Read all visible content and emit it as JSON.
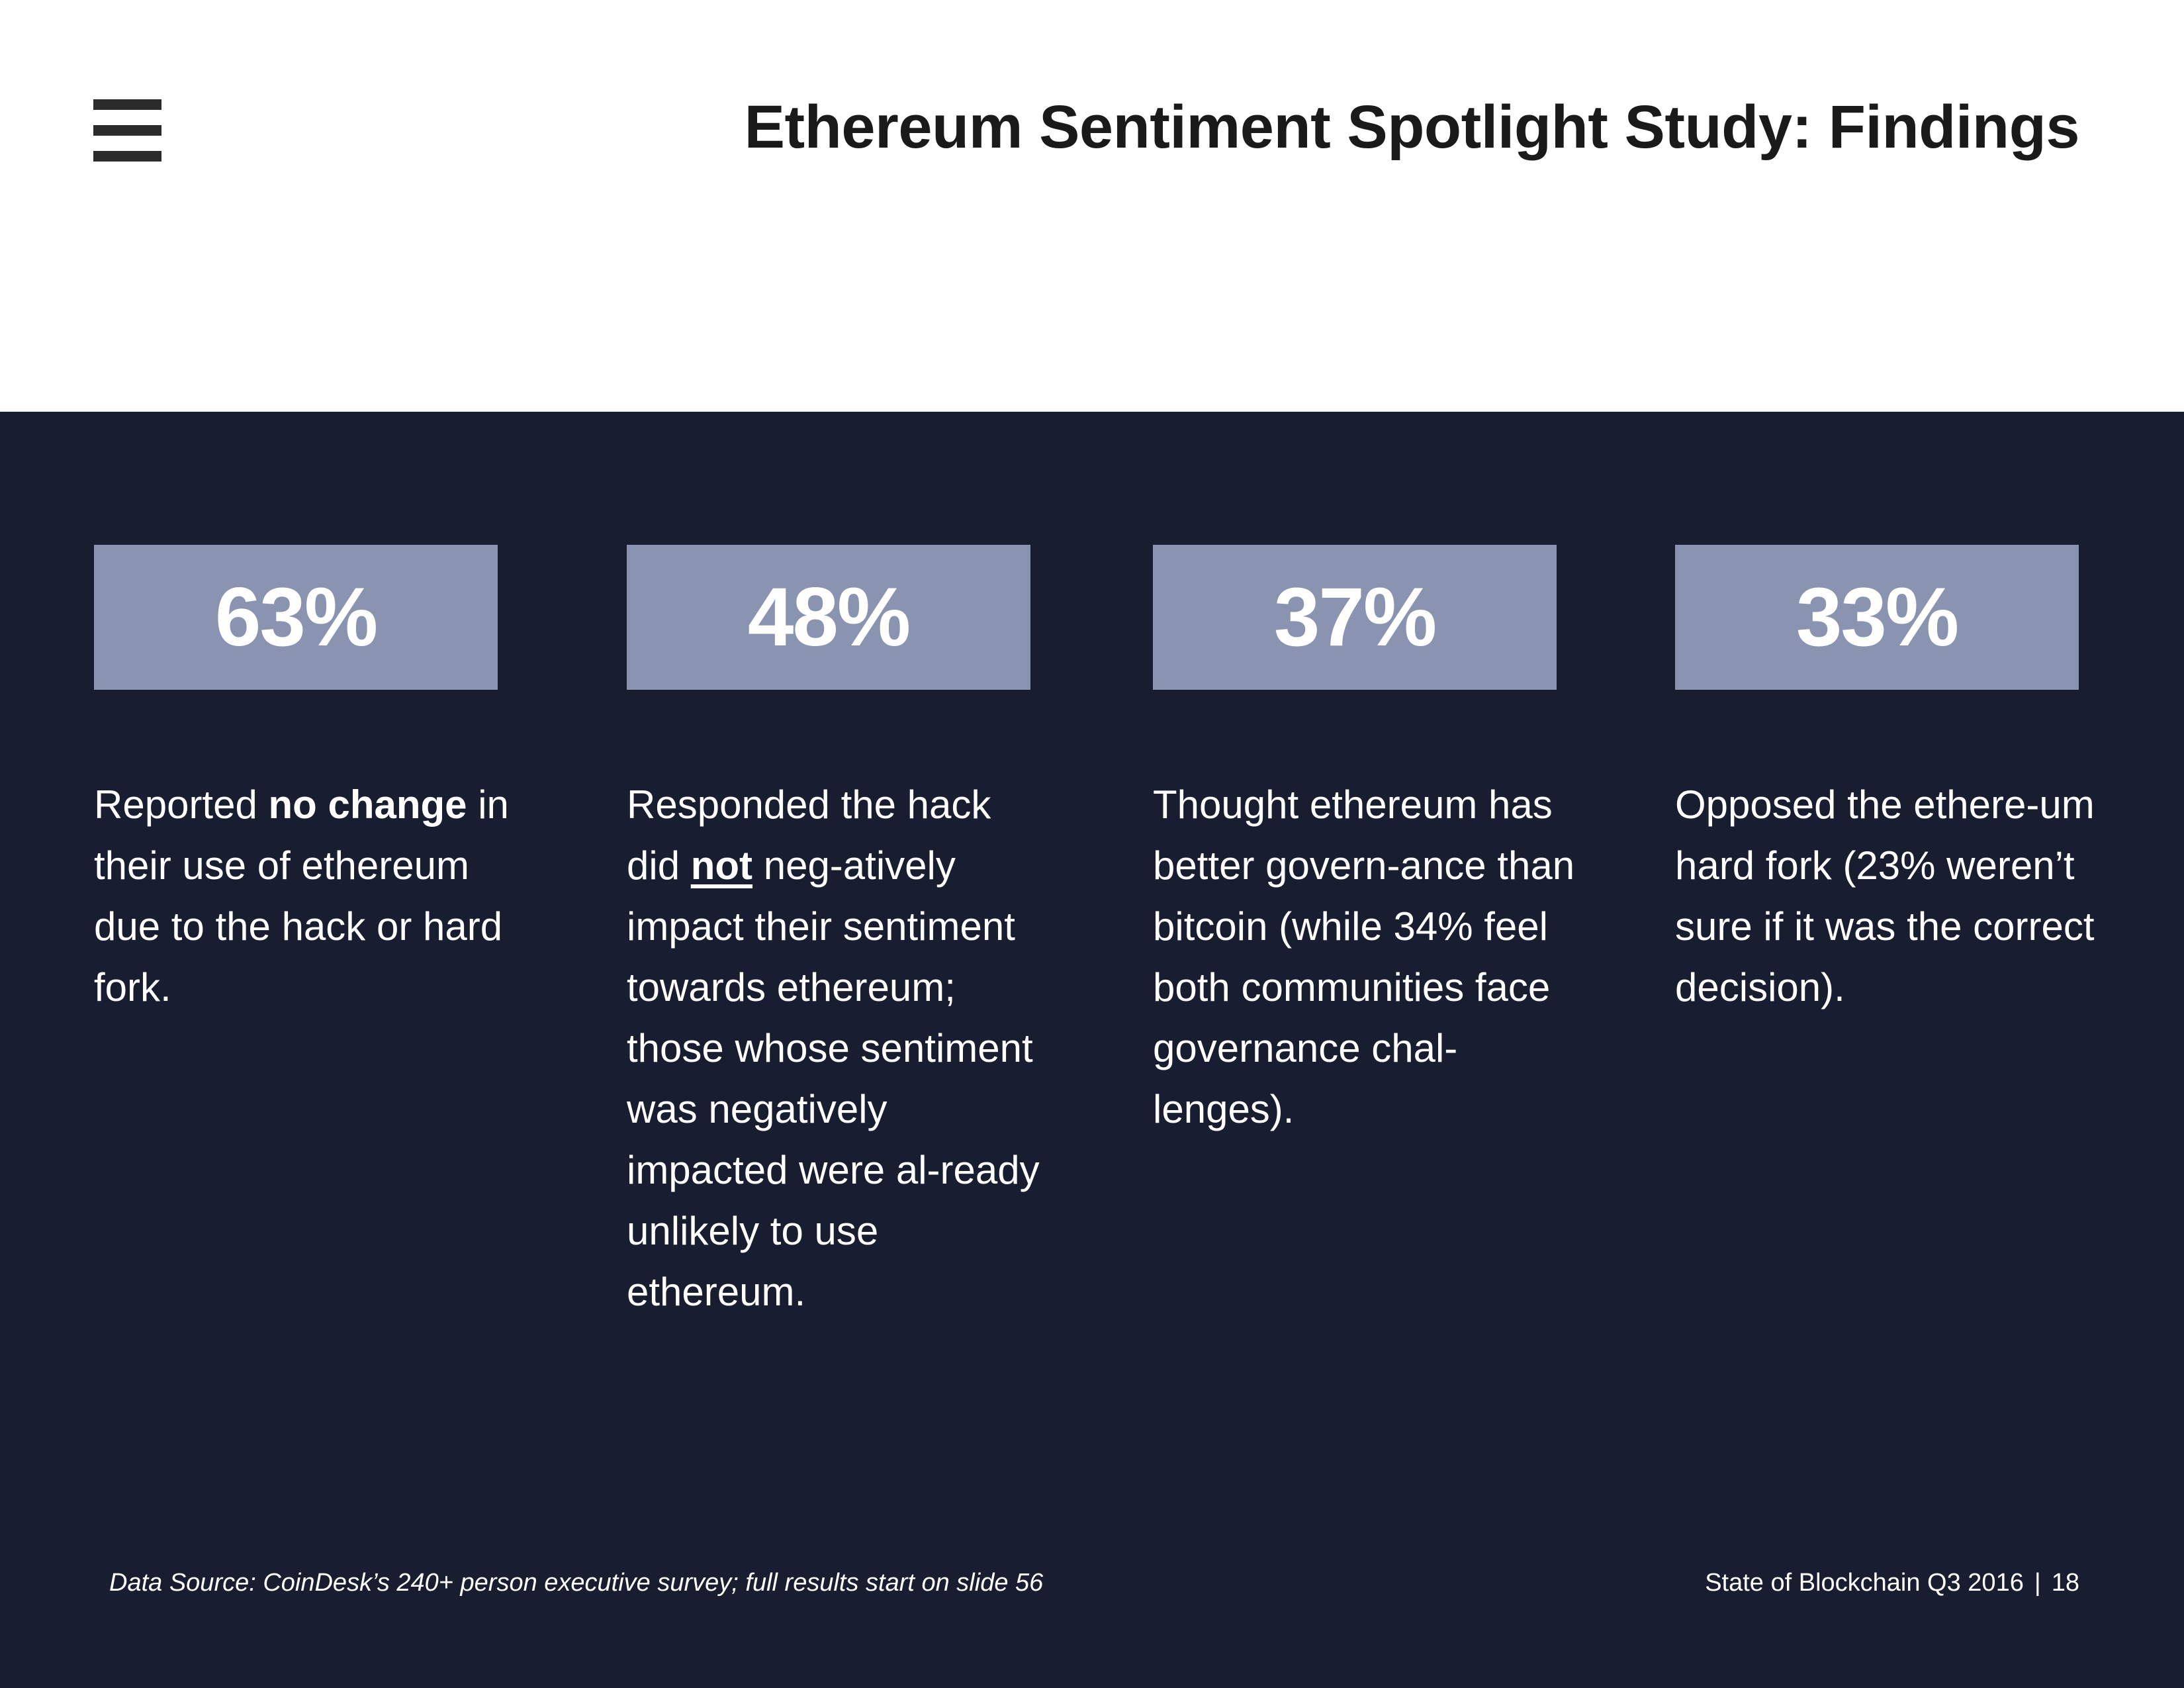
{
  "header": {
    "title": "Ethereum Sentiment Spotlight Study: Findings",
    "menu_icon": "hamburger-menu-icon"
  },
  "stats": [
    {
      "value": "63%",
      "desc_pre": "Reported ",
      "desc_bold": "no change",
      "desc_post": " in their use of ethereum due to the hack or hard fork."
    },
    {
      "value": "48%",
      "desc_pre": "Responded the hack did ",
      "desc_bold": "not",
      "desc_post": " neg-atively impact their sentiment towards ethereum; those whose sentiment was negatively impacted were al-ready unlikely to use ethereum."
    },
    {
      "value": "37%",
      "desc": "Thought ethereum has better govern-ance than bitcoin (while 34% feel both communities face governance chal-lenges)."
    },
    {
      "value": "33%",
      "desc": "Opposed the ethere-um hard fork (23% weren’t sure if it was the correct decision)."
    }
  ],
  "footer": {
    "source": "Data Source: CoinDesk’s 240+ person executive survey; full results start on slide 56",
    "report": "State of Blockchain Q3 2016",
    "separator": "|",
    "page_number": "18"
  },
  "colors": {
    "background_dark": "#181d2f",
    "stat_box": "#8a93b0",
    "title_text": "#1a1a1a"
  }
}
